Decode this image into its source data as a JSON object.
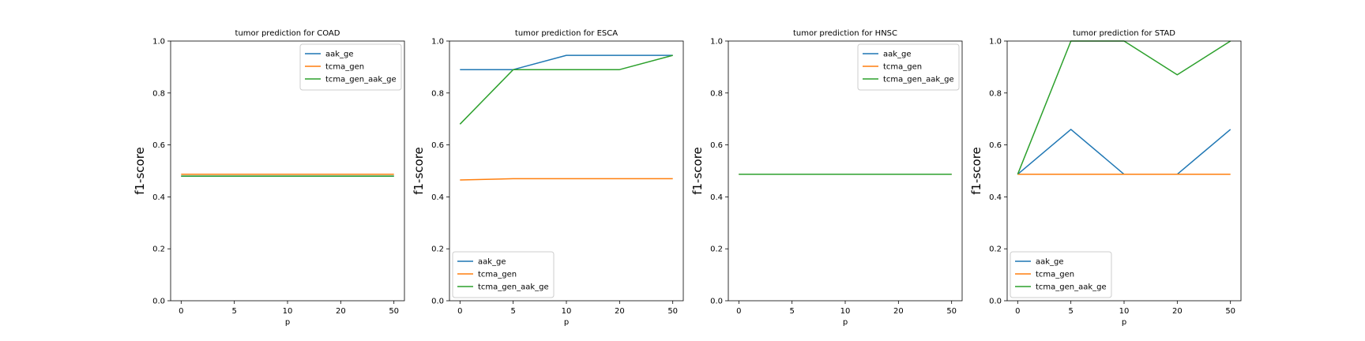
{
  "chart_data": [
    {
      "type": "line",
      "title": "tumor prediction for COAD",
      "xlabel": "p",
      "ylabel": "f1-score",
      "categories": [
        "0",
        "5",
        "10",
        "20",
        "50"
      ],
      "ylim": [
        0,
        1
      ],
      "yticks": [
        "0.0",
        "0.2",
        "0.4",
        "0.6",
        "0.8",
        "1.0"
      ],
      "legend_loc": "upper right",
      "series": [
        {
          "name": "aak_ge",
          "values": [
            0.48,
            0.48,
            0.48,
            0.48,
            0.48
          ]
        },
        {
          "name": "tcma_gen",
          "values": [
            0.487,
            0.487,
            0.487,
            0.487,
            0.487
          ]
        },
        {
          "name": "tcma_gen_aak_ge",
          "values": [
            0.48,
            0.48,
            0.48,
            0.48,
            0.48
          ]
        }
      ]
    },
    {
      "type": "line",
      "title": "tumor prediction for ESCA",
      "xlabel": "p",
      "ylabel": "f1-score",
      "categories": [
        "0",
        "5",
        "10",
        "20",
        "50"
      ],
      "ylim": [
        0,
        1
      ],
      "yticks": [
        "0.0",
        "0.2",
        "0.4",
        "0.6",
        "0.8",
        "1.0"
      ],
      "legend_loc": "lower left",
      "series": [
        {
          "name": "aak_ge",
          "values": [
            0.89,
            0.89,
            0.945,
            0.945,
            0.945
          ]
        },
        {
          "name": "tcma_gen",
          "values": [
            0.465,
            0.47,
            0.47,
            0.47,
            0.47
          ]
        },
        {
          "name": "tcma_gen_aak_ge",
          "values": [
            0.68,
            0.89,
            0.89,
            0.89,
            0.945
          ]
        }
      ]
    },
    {
      "type": "line",
      "title": "tumor prediction for HNSC",
      "xlabel": "p",
      "ylabel": "f1-score",
      "categories": [
        "0",
        "5",
        "10",
        "20",
        "50"
      ],
      "ylim": [
        0,
        1
      ],
      "yticks": [
        "0.0",
        "0.2",
        "0.4",
        "0.6",
        "0.8",
        "1.0"
      ],
      "legend_loc": "upper right",
      "series": [
        {
          "name": "aak_ge",
          "values": [
            0.487,
            0.487,
            0.487,
            0.487,
            0.487
          ]
        },
        {
          "name": "tcma_gen",
          "values": [
            0.487,
            0.487,
            0.487,
            0.487,
            0.487
          ]
        },
        {
          "name": "tcma_gen_aak_ge",
          "values": [
            0.487,
            0.487,
            0.487,
            0.487,
            0.487
          ]
        }
      ]
    },
    {
      "type": "line",
      "title": "tumor prediction for STAD",
      "xlabel": "p",
      "ylabel": "f1-score",
      "categories": [
        "0",
        "5",
        "10",
        "20",
        "50"
      ],
      "ylim": [
        0,
        1
      ],
      "yticks": [
        "0.0",
        "0.2",
        "0.4",
        "0.6",
        "0.8",
        "1.0"
      ],
      "legend_loc": "lower left",
      "series": [
        {
          "name": "aak_ge",
          "values": [
            0.487,
            0.66,
            0.487,
            0.487,
            0.66
          ]
        },
        {
          "name": "tcma_gen",
          "values": [
            0.487,
            0.487,
            0.487,
            0.487,
            0.487
          ]
        },
        {
          "name": "tcma_gen_aak_ge",
          "values": [
            0.487,
            1.0,
            1.0,
            0.87,
            1.0
          ]
        }
      ]
    }
  ],
  "colors": {
    "aak_ge": "#1f77b4",
    "tcma_gen": "#ff7f0e",
    "tcma_gen_aak_ge": "#2ca02c"
  }
}
